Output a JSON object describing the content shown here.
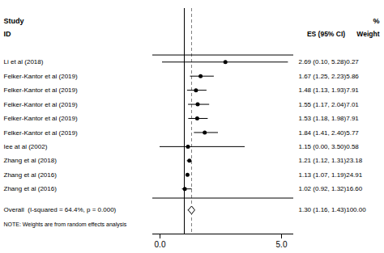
{
  "chart_data": {
    "type": "forest",
    "study_header": "Study",
    "id_header": "ID",
    "percent_header": "%",
    "es_header": "ES (95% CI)",
    "weight_header": "Weight",
    "note": "NOTE: Weights are from random effects analysis",
    "categories": [
      "Li et al (2018)",
      "Felker-Kantor et al (2019)",
      "Felker-Kantor et al (2019)",
      "Felker-Kantor et al (2019)",
      "Felker-Kantor et al (2019)",
      "Felker-Kantor et al (2019)",
      "Iee at al (2002)",
      "Zhang et al (2018)",
      "Zhang et al (2016)",
      "Zhang et al (2016)"
    ],
    "values": [
      2.69,
      1.67,
      1.48,
      1.55,
      1.53,
      1.84,
      1.15,
      1.21,
      1.13,
      1.02
    ],
    "ci_lo": [
      0.1,
      1.25,
      1.13,
      1.17,
      1.18,
      1.41,
      0.0,
      1.12,
      1.07,
      0.92
    ],
    "ci_hi": [
      5.28,
      2.23,
      1.93,
      2.04,
      1.98,
      2.4,
      3.5,
      1.31,
      1.19,
      1.32
    ],
    "value_labels": [
      "2.69 (0.10, 5.28)0.27",
      "1.67 (1.25, 2.23)5.86",
      "1.48 (1.13, 1.93)7.91",
      "1.55 (1.17, 2.04)7.01",
      "1.53 (1.18, 1.98)7.91",
      "1.84 (1.41, 2.40)5.77",
      "1.15 (0.00, 3.50)0.58",
      "1.21 (1.12, 1.31)23.18",
      "1.13 (1.07, 1.19)24.91",
      "1.02 (0.92, 1.32)16.60"
    ],
    "overall": {
      "label": "Overall  (I-squared = 64.4%, p = 0.000)",
      "value": 1.3,
      "ci_lo": 1.16,
      "ci_hi": 1.43,
      "value_label": "1.30 (1.16, 1.43)100.00"
    },
    "reference_line": 1.0,
    "dashed_line": 1.3,
    "xlim": [
      -0.3,
      5.5
    ],
    "xticks": [
      0,
      5
    ],
    "grid": false
  }
}
